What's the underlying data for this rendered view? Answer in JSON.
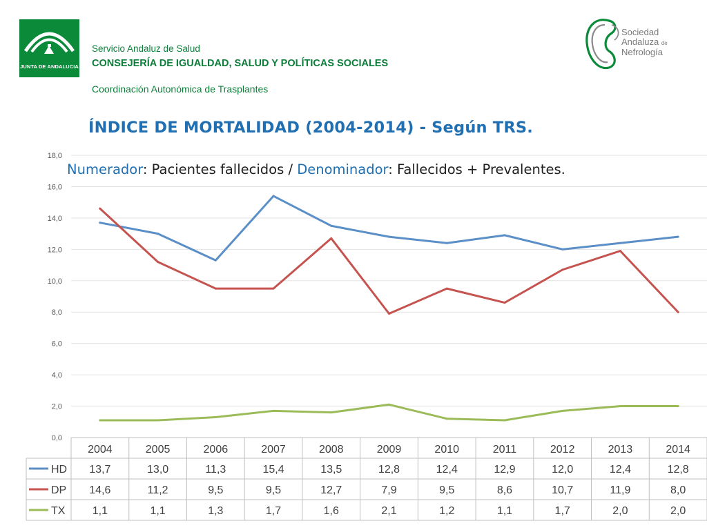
{
  "header": {
    "junta_logo_text": "JUNTA DE ANDALUCIA",
    "servicio": "Servicio Andaluz de Salud",
    "consejeria": "CONSEJERÍA DE IGUALDAD, SALUD Y POLÍTICAS SOCIALES",
    "coordinacion": "Coordinación Autonómica de Trasplantes",
    "san_logo": {
      "line1": "Sociedad",
      "line2": "Andaluza",
      "line2_small": "de",
      "line3": "Nefrología"
    }
  },
  "slide": {
    "title": "ÍNDICE DE MORTALIDAD (2004-2014) - Según TRS.",
    "subtitle_parts": {
      "numerador": "Numerador",
      "part2": ": Pacientes fallecidos / ",
      "denominador": "Denominador",
      "part4": ": Fallecidos + Prevalentes."
    }
  },
  "colors": {
    "HD": "#5b8fc7",
    "DP": "#c5534f",
    "TX": "#9bbb59",
    "title": "#1f6fb2",
    "brand_green": "#0b8a3a"
  },
  "chart_data": {
    "type": "line",
    "categories": [
      "2004",
      "2005",
      "2006",
      "2007",
      "2008",
      "2009",
      "2010",
      "2011",
      "2012",
      "2013",
      "2014"
    ],
    "ylim": [
      0,
      18
    ],
    "ytick_step": 2,
    "ytick_labels": [
      "0,0",
      "2,0",
      "4,0",
      "6,0",
      "8,0",
      "10,0",
      "12,0",
      "14,0",
      "16,0",
      "18,0"
    ],
    "grid": true,
    "legend": "data-table",
    "series": [
      {
        "name": "HD",
        "values": [
          13.7,
          13.0,
          11.3,
          15.4,
          13.5,
          12.8,
          12.4,
          12.9,
          12.0,
          12.4,
          12.8
        ],
        "labels": [
          "13,7",
          "13,0",
          "11,3",
          "15,4",
          "13,5",
          "12,8",
          "12,4",
          "12,9",
          "12,0",
          "12,4",
          "12,8"
        ]
      },
      {
        "name": "DP",
        "values": [
          14.6,
          11.2,
          9.5,
          9.5,
          12.7,
          7.9,
          9.5,
          8.6,
          10.7,
          11.9,
          8.0
        ],
        "labels": [
          "14,6",
          "11,2",
          "9,5",
          "9,5",
          "12,7",
          "7,9",
          "9,5",
          "8,6",
          "10,7",
          "11,9",
          "8,0"
        ]
      },
      {
        "name": "TX",
        "values": [
          1.1,
          1.1,
          1.3,
          1.7,
          1.6,
          2.1,
          1.2,
          1.1,
          1.7,
          2.0,
          2.0
        ],
        "labels": [
          "1,1",
          "1,1",
          "1,3",
          "1,7",
          "1,6",
          "2,1",
          "1,2",
          "1,1",
          "1,7",
          "2,0",
          "2,0"
        ]
      }
    ]
  }
}
